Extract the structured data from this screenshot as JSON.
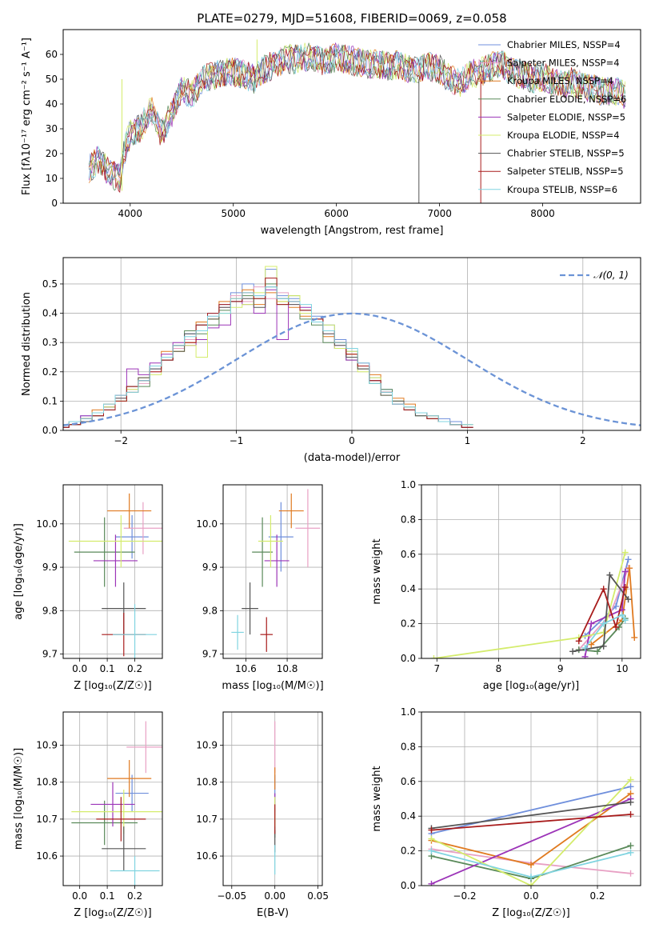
{
  "figure_title": "PLATE=0279, MJD=51608, FIBERID=0069, z=0.058",
  "colors": {
    "series": [
      "#6f8fdc",
      "#e8a0c4",
      "#e07a20",
      "#5a8a5a",
      "#9c34b8",
      "#d4ec6c",
      "#555555",
      "#a81c1c",
      "#80d4e0"
    ],
    "normal": "#6b93d6",
    "grid": "#b0b0b0"
  },
  "chart_data": [
    {
      "id": "spectrum",
      "type": "line",
      "title": "PLATE=0279, MJD=51608, FIBERID=0069, z=0.058",
      "xlabel": "wavelength [Angstrom, rest frame]",
      "ylabel": "Flux [fλ10⁻¹⁷ erg cm⁻² s⁻¹ A⁻¹]",
      "xlim": [
        3350,
        8950
      ],
      "ylim": [
        0,
        70
      ],
      "xticks": [
        "4000",
        "5000",
        "6000",
        "7000",
        "8000"
      ],
      "yticks": [
        "0",
        "10",
        "20",
        "30",
        "40",
        "50",
        "60"
      ],
      "grid": false,
      "legend_position": "top-right",
      "legend": [
        "Chabrier MILES, NSSP=4",
        "Salpeter MILES, NSSP=4",
        "Kroupa MILES, NSSP=4",
        "Chabrier ELODIE, NSSP=6",
        "Salpeter ELODIE, NSSP=5",
        "Kroupa ELODIE, NSSP=4",
        "Chabrier STELIB, NSSP=5",
        "Salpeter STELIB, NSSP=5",
        "Kroupa STELIB, NSSP=6"
      ],
      "x": [
        3600,
        3700,
        3800,
        3900,
        3950,
        4000,
        4100,
        4200,
        4300,
        4400,
        4500,
        4600,
        4700,
        4800,
        4900,
        5000,
        5100,
        5200,
        5300,
        5400,
        5500,
        5600,
        5700,
        5800,
        5900,
        6000,
        6100,
        6200,
        6300,
        6400,
        6500,
        6600,
        6700,
        6800,
        6900,
        7000,
        7100,
        7200,
        7300,
        7400,
        7500,
        7600,
        7700,
        7800,
        7900,
        8000,
        8100,
        8200,
        8300,
        8400,
        8500,
        8600,
        8700,
        8800
      ],
      "y": [
        14,
        18,
        12,
        10,
        22,
        28,
        30,
        38,
        28,
        36,
        46,
        44,
        50,
        51,
        53,
        53,
        52,
        50,
        54,
        56,
        58,
        58,
        59,
        58,
        57,
        59,
        58,
        57,
        56,
        56,
        55,
        56,
        54,
        54,
        55,
        54,
        50,
        48,
        52,
        53,
        55,
        56,
        53,
        52,
        50,
        51,
        49,
        48,
        49,
        47,
        46,
        45,
        45,
        44
      ],
      "y_end": 43
    },
    {
      "id": "residuals",
      "type": "histogram",
      "xlabel": "(data-model)/error",
      "ylabel": "Normed distribution",
      "xlim": [
        -2.5,
        2.5
      ],
      "ylim": [
        0,
        0.59
      ],
      "xticks": [
        "−2",
        "−1",
        "0",
        "1",
        "2"
      ],
      "yticks": [
        "0.0",
        "0.1",
        "0.2",
        "0.3",
        "0.4",
        "0.5"
      ],
      "grid": true,
      "legend_position": "top-right",
      "legend": [
        "𝒩(0, 1)"
      ],
      "bin_width": 0.1,
      "series": [
        {
          "values": [
            0.02,
            0.03,
            0.05,
            0.06,
            0.08,
            0.1,
            0.13,
            0.17,
            0.21,
            0.24,
            0.29,
            0.33,
            0.36,
            0.4,
            0.43,
            0.47,
            0.5,
            0.46,
            0.55,
            0.46,
            0.45,
            0.41,
            0.39,
            0.36,
            0.31,
            0.27,
            0.22,
            0.18,
            0.14,
            0.1,
            0.08,
            0.06,
            0.05,
            0.04,
            0.03,
            0.02
          ]
        },
        {
          "values": [
            0.01,
            0.03,
            0.04,
            0.06,
            0.09,
            0.11,
            0.14,
            0.16,
            0.2,
            0.25,
            0.28,
            0.31,
            0.34,
            0.39,
            0.42,
            0.46,
            0.44,
            0.49,
            0.45,
            0.47,
            0.43,
            0.4,
            0.37,
            0.33,
            0.29,
            0.25,
            0.21,
            0.17,
            0.13,
            0.09,
            0.07,
            0.06,
            0.04,
            0.03,
            0.02,
            0.02
          ]
        },
        {
          "values": [
            0.02,
            0.02,
            0.04,
            0.07,
            0.09,
            0.12,
            0.13,
            0.18,
            0.22,
            0.27,
            0.27,
            0.3,
            0.37,
            0.38,
            0.44,
            0.45,
            0.48,
            0.43,
            0.47,
            0.44,
            0.42,
            0.39,
            0.38,
            0.32,
            0.3,
            0.26,
            0.22,
            0.19,
            0.13,
            0.11,
            0.09,
            0.06,
            0.05,
            0.03,
            0.02,
            0.01
          ]
        },
        {
          "values": [
            0.01,
            0.02,
            0.04,
            0.05,
            0.08,
            0.1,
            0.15,
            0.15,
            0.22,
            0.24,
            0.29,
            0.34,
            0.33,
            0.36,
            0.41,
            0.44,
            0.46,
            0.45,
            0.5,
            0.43,
            0.46,
            0.38,
            0.36,
            0.3,
            0.3,
            0.24,
            0.21,
            0.16,
            0.14,
            0.1,
            0.07,
            0.05,
            0.04,
            0.03,
            0.02,
            0.01
          ]
        },
        {
          "values": [
            0.01,
            0.03,
            0.05,
            0.06,
            0.08,
            0.12,
            0.21,
            0.19,
            0.23,
            0.26,
            0.3,
            0.29,
            0.31,
            0.35,
            0.36,
            0.44,
            0.43,
            0.4,
            0.48,
            0.31,
            0.44,
            0.42,
            0.37,
            0.34,
            0.28,
            0.24,
            0.23,
            0.17,
            0.13,
            0.09,
            0.08,
            0.06,
            0.04,
            0.03,
            0.02,
            0.01
          ]
        },
        {
          "values": [
            0.02,
            0.03,
            0.04,
            0.06,
            0.08,
            0.1,
            0.14,
            0.18,
            0.19,
            0.25,
            0.27,
            0.29,
            0.25,
            0.38,
            0.4,
            0.42,
            0.43,
            0.47,
            0.56,
            0.44,
            0.46,
            0.4,
            0.37,
            0.36,
            0.28,
            0.27,
            0.2,
            0.18,
            0.12,
            0.1,
            0.08,
            0.06,
            0.04,
            0.03,
            0.02,
            0.02
          ]
        },
        {
          "values": [
            0.01,
            0.02,
            0.03,
            0.05,
            0.07,
            0.11,
            0.15,
            0.18,
            0.21,
            0.24,
            0.27,
            0.33,
            0.36,
            0.38,
            0.42,
            0.44,
            0.45,
            0.42,
            0.49,
            0.45,
            0.43,
            0.41,
            0.38,
            0.33,
            0.29,
            0.25,
            0.21,
            0.17,
            0.12,
            0.1,
            0.07,
            0.05,
            0.04,
            0.03,
            0.02,
            0.01
          ]
        },
        {
          "values": [
            0.01,
            0.02,
            0.04,
            0.05,
            0.07,
            0.1,
            0.15,
            0.17,
            0.2,
            0.24,
            0.29,
            0.3,
            0.36,
            0.4,
            0.43,
            0.44,
            0.47,
            0.45,
            0.52,
            0.43,
            0.44,
            0.41,
            0.38,
            0.34,
            0.3,
            0.26,
            0.22,
            0.17,
            0.13,
            0.09,
            0.07,
            0.06,
            0.04,
            0.03,
            0.02,
            0.01
          ]
        },
        {
          "values": [
            0.02,
            0.03,
            0.04,
            0.06,
            0.09,
            0.12,
            0.13,
            0.17,
            0.22,
            0.25,
            0.29,
            0.32,
            0.34,
            0.39,
            0.4,
            0.45,
            0.47,
            0.46,
            0.49,
            0.45,
            0.44,
            0.43,
            0.37,
            0.34,
            0.3,
            0.28,
            0.23,
            0.16,
            0.13,
            0.09,
            0.08,
            0.06,
            0.05,
            0.03,
            0.02,
            0.02
          ]
        }
      ]
    },
    {
      "id": "age-vs-z",
      "type": "scatter",
      "xlabel": "Z [log₁₀(Z/Z☉)]",
      "ylabel": "age  [log₁₀(age/yr)]",
      "xlim": [
        -0.06,
        0.3
      ],
      "ylim": [
        9.69,
        10.09
      ],
      "xticks": [
        "0.0",
        "0.1",
        "0.2"
      ],
      "yticks": [
        "9.7",
        "9.8",
        "9.9",
        "10.0"
      ],
      "grid": true,
      "points": [
        {
          "x": 0.19,
          "y": 9.97,
          "xerr": 0.06,
          "yerr": 0.05
        },
        {
          "x": 0.23,
          "y": 9.99,
          "xerr": 0.07,
          "yerr": 0.06
        },
        {
          "x": 0.18,
          "y": 10.03,
          "xerr": 0.08,
          "yerr": 0.04
        },
        {
          "x": 0.09,
          "y": 9.935,
          "xerr": 0.11,
          "yerr": 0.08
        },
        {
          "x": 0.13,
          "y": 9.915,
          "xerr": 0.08,
          "yerr": 0.06
        },
        {
          "x": 0.15,
          "y": 9.96,
          "xerr": 0.19,
          "yerr": 0.06
        },
        {
          "x": 0.16,
          "y": 9.805,
          "xerr": 0.08,
          "yerr": 0.06
        },
        {
          "x": 0.16,
          "y": 9.745,
          "xerr": 0.08,
          "yerr": 0.05
        },
        {
          "x": 0.2,
          "y": 9.745,
          "xerr": 0.08,
          "yerr": 0.07
        }
      ]
    },
    {
      "id": "age-vs-mass",
      "type": "scatter",
      "xlabel": "mass [log₁₀(M/M☉)]",
      "ylabel": "",
      "xlim": [
        10.49,
        10.97
      ],
      "ylim": [
        9.69,
        10.09
      ],
      "xticks": [
        "10.6",
        "10.8"
      ],
      "yticks": [
        "9.7",
        "9.8",
        "9.9",
        "10.0"
      ],
      "grid": true,
      "points": [
        {
          "x": 10.77,
          "y": 9.97,
          "xerr": 0.06,
          "yerr": 0.08
        },
        {
          "x": 10.9,
          "y": 9.99,
          "xerr": 0.06,
          "yerr": 0.09
        },
        {
          "x": 10.82,
          "y": 10.03,
          "xerr": 0.06,
          "yerr": 0.04
        },
        {
          "x": 10.68,
          "y": 9.935,
          "xerr": 0.05,
          "yerr": 0.08
        },
        {
          "x": 10.75,
          "y": 9.915,
          "xerr": 0.06,
          "yerr": 0.06
        },
        {
          "x": 10.72,
          "y": 9.96,
          "xerr": 0.06,
          "yerr": 0.06
        },
        {
          "x": 10.62,
          "y": 9.805,
          "xerr": 0.04,
          "yerr": 0.06
        },
        {
          "x": 10.7,
          "y": 9.745,
          "xerr": 0.03,
          "yerr": 0.04
        },
        {
          "x": 10.56,
          "y": 9.75,
          "xerr": 0.03,
          "yerr": 0.04
        }
      ]
    },
    {
      "id": "massweight-vs-age",
      "type": "line",
      "xlabel": "age  [log₁₀(age/yr)]",
      "ylabel": "mass weight",
      "xlim": [
        6.75,
        10.3
      ],
      "ylim": [
        0,
        1
      ],
      "xticks": [
        "7",
        "8",
        "9",
        "10"
      ],
      "yticks": [
        "0.0",
        "0.2",
        "0.4",
        "0.6",
        "0.8",
        "1.0"
      ],
      "grid": true,
      "series": [
        {
          "x": [
            9.4,
            9.9,
            10.1
          ],
          "y": [
            0.13,
            0.3,
            0.57
          ]
        },
        {
          "x": [
            9.3,
            9.8,
            10.1
          ],
          "y": [
            0.05,
            0.25,
            0.52
          ]
        },
        {
          "x": [
            9.5,
            10.0,
            10.12,
            10.2
          ],
          "y": [
            0.08,
            0.22,
            0.52,
            0.12
          ]
        },
        {
          "x": [
            9.3,
            9.6,
            9.95,
            10.05
          ],
          "y": [
            0.05,
            0.04,
            0.18,
            0.23
          ]
        },
        {
          "x": [
            9.4,
            9.5,
            10.0,
            10.05
          ],
          "y": [
            0.01,
            0.2,
            0.28,
            0.5
          ]
        },
        {
          "x": [
            6.95,
            9.3,
            9.7,
            10.05
          ],
          "y": [
            0.0,
            0.12,
            0.15,
            0.61
          ]
        },
        {
          "x": [
            9.2,
            9.7,
            9.8,
            10.1
          ],
          "y": [
            0.04,
            0.07,
            0.48,
            0.34
          ]
        },
        {
          "x": [
            9.3,
            9.7,
            9.9,
            10.05
          ],
          "y": [
            0.1,
            0.4,
            0.18,
            0.41
          ]
        },
        {
          "x": [
            9.4,
            9.7,
            10.0,
            10.05
          ],
          "y": [
            0.06,
            0.2,
            0.25,
            0.22
          ]
        }
      ]
    },
    {
      "id": "mass-vs-z",
      "type": "scatter",
      "xlabel": "Z [log₁₀(Z/Z☉)]",
      "ylabel": "mass [log₁₀(M/M☉)]",
      "xlim": [
        -0.06,
        0.3
      ],
      "ylim": [
        10.52,
        10.99
      ],
      "xticks": [
        "0.0",
        "0.1",
        "0.2"
      ],
      "yticks": [
        "10.6",
        "10.7",
        "10.8",
        "10.9"
      ],
      "grid": true,
      "points": [
        {
          "x": 0.19,
          "y": 10.77,
          "xerr": 0.06,
          "yerr": 0.05
        },
        {
          "x": 0.24,
          "y": 10.895,
          "xerr": 0.07,
          "yerr": 0.07
        },
        {
          "x": 0.18,
          "y": 10.81,
          "xerr": 0.08,
          "yerr": 0.05
        },
        {
          "x": 0.09,
          "y": 10.69,
          "xerr": 0.12,
          "yerr": 0.06
        },
        {
          "x": 0.12,
          "y": 10.74,
          "xerr": 0.08,
          "yerr": 0.06
        },
        {
          "x": 0.16,
          "y": 10.72,
          "xerr": 0.19,
          "yerr": 0.06
        },
        {
          "x": 0.16,
          "y": 10.62,
          "xerr": 0.08,
          "yerr": 0.06
        },
        {
          "x": 0.15,
          "y": 10.7,
          "xerr": 0.09,
          "yerr": 0.06
        },
        {
          "x": 0.2,
          "y": 10.56,
          "xerr": 0.09,
          "yerr": 0.04
        }
      ]
    },
    {
      "id": "mass-vs-ebv",
      "type": "scatter",
      "xlabel": "E(B-V)",
      "ylabel": "",
      "xlim": [
        -0.06,
        0.055
      ],
      "ylim": [
        10.52,
        10.99
      ],
      "xticks": [
        "−0.05",
        "0.00",
        "0.05"
      ],
      "yticks": [
        "10.6",
        "10.7",
        "10.8",
        "10.9"
      ],
      "grid": true,
      "points": [
        {
          "x": 0.0,
          "y": 10.77,
          "xerr": 0.0,
          "yerr": 0.05
        },
        {
          "x": 0.0,
          "y": 10.895,
          "xerr": 0.0,
          "yerr": 0.07
        },
        {
          "x": 0.0,
          "y": 10.81,
          "xerr": 0.0,
          "yerr": 0.03
        },
        {
          "x": 0.0,
          "y": 10.69,
          "xerr": 0.0,
          "yerr": 0.04
        },
        {
          "x": 0.0,
          "y": 10.74,
          "xerr": 0.0,
          "yerr": 0.03
        },
        {
          "x": 0.0,
          "y": 10.72,
          "xerr": 0.0,
          "yerr": 0.04
        },
        {
          "x": 0.0,
          "y": 10.64,
          "xerr": 0.0,
          "yerr": 0.03
        },
        {
          "x": 0.0,
          "y": 10.7,
          "xerr": 0.0,
          "yerr": 0.04
        },
        {
          "x": 0.0,
          "y": 10.59,
          "xerr": 0.0,
          "yerr": 0.04
        }
      ]
    },
    {
      "id": "massweight-vs-z",
      "type": "line",
      "xlabel": "Z [log₁₀(Z/Z☉)]",
      "ylabel": "mass weight",
      "xlim": [
        -0.33,
        0.33
      ],
      "ylim": [
        0,
        1
      ],
      "xticks": [
        "−0.2",
        "0.0",
        "0.2"
      ],
      "yticks": [
        "0.0",
        "0.2",
        "0.4",
        "0.6",
        "0.8",
        "1.0"
      ],
      "grid": true,
      "series": [
        {
          "x": [
            -0.3,
            0.3
          ],
          "y": [
            0.3,
            0.57
          ]
        },
        {
          "x": [
            -0.3,
            0.0,
            0.3
          ],
          "y": [
            0.21,
            0.13,
            0.07
          ]
        },
        {
          "x": [
            -0.3,
            0.0,
            0.3
          ],
          "y": [
            0.26,
            0.12,
            0.53
          ]
        },
        {
          "x": [
            -0.3,
            0.0,
            0.3
          ],
          "y": [
            0.17,
            0.04,
            0.23
          ]
        },
        {
          "x": [
            -0.3,
            0.3
          ],
          "y": [
            0.01,
            0.5
          ]
        },
        {
          "x": [
            -0.3,
            0.0,
            0.3
          ],
          "y": [
            0.27,
            0.0,
            0.61
          ]
        },
        {
          "x": [
            -0.3,
            0.3
          ],
          "y": [
            0.33,
            0.48
          ]
        },
        {
          "x": [
            -0.3,
            0.3
          ],
          "y": [
            0.32,
            0.41
          ]
        },
        {
          "x": [
            -0.3,
            0.0,
            0.3
          ],
          "y": [
            0.2,
            0.05,
            0.19
          ]
        }
      ]
    }
  ]
}
